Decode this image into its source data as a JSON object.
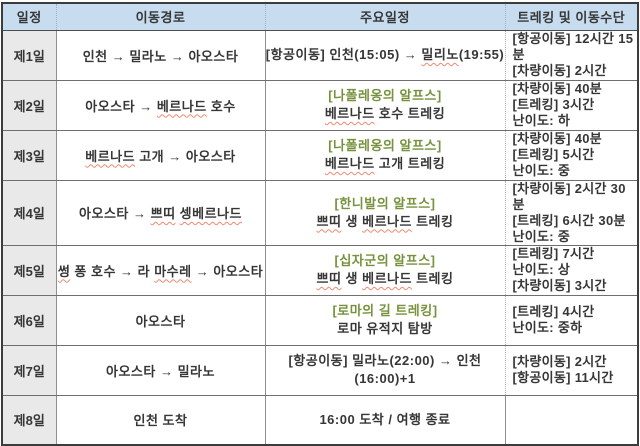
{
  "colors": {
    "header_bg": "#c8dcf0",
    "day_bg": "#e9e9e9",
    "green": "#76923c",
    "squiggle": "#f08970",
    "text": "#363636",
    "border_dark": "#3c3c3c"
  },
  "table": {
    "headers": [
      "일정",
      "이동경로",
      "주요일정",
      "트레킹 및 이동수단"
    ],
    "rows": [
      {
        "day": "제1일",
        "route": [
          {
            "text": "인천 → 밀라노 → 아오스타"
          }
        ],
        "main_lines": [
          [
            {
              "text": "[항공이동] 인천(15:05) → "
            },
            {
              "text": "밀리노",
              "spell": true
            },
            {
              "text": "(19:55)"
            }
          ]
        ],
        "transport": [
          "[항공이동] 12시간 15분",
          "[차량이동] 2시간"
        ]
      },
      {
        "day": "제2일",
        "route": [
          {
            "text": "아오스타 → "
          },
          {
            "text": "베르나드",
            "spell": true
          },
          {
            "text": " 호수"
          }
        ],
        "main_lines": [
          [
            {
              "text": "[나폴레옹의 알프스]",
              "green": true
            }
          ],
          [
            {
              "text": "베르나드",
              "spell": true
            },
            {
              "text": " 호수 트레킹"
            }
          ]
        ],
        "transport": [
          "[차량이동] 40분",
          "[트레킹] 3시간",
          "난이도: 하"
        ]
      },
      {
        "day": "제3일",
        "route": [
          {
            "text": "베르나드",
            "spell": true
          },
          {
            "text": " 고개 → 아오스타"
          }
        ],
        "main_lines": [
          [
            {
              "text": "[나폴레옹의 알프스]",
              "green": true
            }
          ],
          [
            {
              "text": "베르나드",
              "spell": true
            },
            {
              "text": " 고개 트레킹"
            }
          ]
        ],
        "transport": [
          "[차량이동] 40분",
          "[트레킹] 5시간",
          "난이도: 중"
        ]
      },
      {
        "day": "제4일",
        "route": [
          {
            "text": "아오스타 → "
          },
          {
            "text": "쁘띠",
            "spell": true
          },
          {
            "text": " "
          },
          {
            "text": "셍베르나드",
            "spell": true
          }
        ],
        "main_lines": [
          [
            {
              "text": "[한니발의 알프스]",
              "green": true
            }
          ],
          [
            {
              "text": "쁘띠",
              "spell": true
            },
            {
              "text": " 생 "
            },
            {
              "text": "베르나드",
              "spell": true
            },
            {
              "text": " 트레킹"
            }
          ]
        ],
        "transport": [
          "[차량이동] 2시간 30분",
          "[트레킹] 6시간 30분",
          "난이도: 중"
        ]
      },
      {
        "day": "제5일",
        "route": [
          {
            "text": "썽",
            "spell": true
          },
          {
            "text": " 퐁 호수 → 라 "
          },
          {
            "text": "마수레",
            "spell": true
          },
          {
            "text": " → 아오스타"
          }
        ],
        "main_lines": [
          [
            {
              "text": "[십자군의 알프스]",
              "green": true
            }
          ],
          [
            {
              "text": "쁘띠",
              "spell": true
            },
            {
              "text": " 생 "
            },
            {
              "text": "베르나드",
              "spell": true
            },
            {
              "text": " 트레킹"
            }
          ]
        ],
        "transport": [
          "[트레킹] 7시간",
          "난이도: 상",
          "[차량이동] 3시간"
        ]
      },
      {
        "day": "제6일",
        "route": [
          {
            "text": "아오스타"
          }
        ],
        "main_lines": [
          [
            {
              "text": "[로마의 길 트레킹]",
              "green": true
            }
          ],
          [
            {
              "text": "로마 유적지 탐방"
            }
          ]
        ],
        "transport": [
          "[트레킹] 4시간",
          "난이도: 중하"
        ]
      },
      {
        "day": "제7일",
        "route": [
          {
            "text": "아오스타 → 밀라노"
          }
        ],
        "main_lines": [
          [
            {
              "text": "[항공이동] 밀라노(22:00) → 인천(16:00)+1"
            }
          ]
        ],
        "transport": [
          "[차량이동] 2시간",
          "[항공이동] 11시간"
        ]
      },
      {
        "day": "제8일",
        "route": [
          {
            "text": "인천 도착"
          }
        ],
        "main_lines": [
          [
            {
              "text": "16:00 도착 / 여행 종료"
            }
          ]
        ],
        "transport": []
      }
    ]
  }
}
